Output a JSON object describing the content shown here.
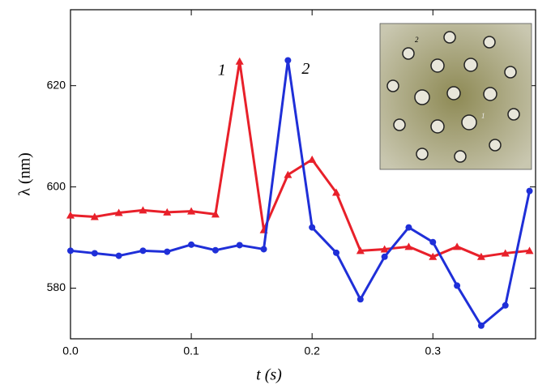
{
  "chart_data": {
    "type": "line",
    "x_label": "t (s)",
    "y_label": "λ (nm)",
    "x": [
      0,
      0.02,
      0.04,
      0.06,
      0.08,
      0.1,
      0.12,
      0.14,
      0.16,
      0.18,
      0.2,
      0.22,
      0.24,
      0.26,
      0.28,
      0.3,
      0.32,
      0.34,
      0.36,
      0.38
    ],
    "series": [
      {
        "name": "1",
        "color": "#e8202a",
        "marker": "triangle",
        "values": [
          594.4,
          594.1,
          594.9,
          595.4,
          595.0,
          595.2,
          594.6,
          624.8,
          591.5,
          602.4,
          605.4,
          598.9,
          587.4,
          587.7,
          588.2,
          586.2,
          588.2,
          586.2,
          586.9,
          587.4
        ]
      },
      {
        "name": "2",
        "color": "#1f2fd8",
        "marker": "circle",
        "values": [
          587.4,
          586.9,
          586.4,
          587.4,
          587.2,
          588.6,
          587.5,
          588.5,
          587.7,
          625.0,
          592.0,
          587.0,
          577.8,
          586.2,
          592.0,
          589.1,
          580.5,
          572.6,
          576.6,
          599.2
        ]
      }
    ],
    "xlim": [
      0,
      0.385
    ],
    "ylim": [
      570,
      635
    ],
    "xticks": [
      {
        "value": 0,
        "label": "0.0"
      },
      0.1,
      0.2,
      0.3
    ],
    "yticks": [
      580,
      600,
      620
    ],
    "inset_labels": [
      "2",
      "1"
    ]
  }
}
